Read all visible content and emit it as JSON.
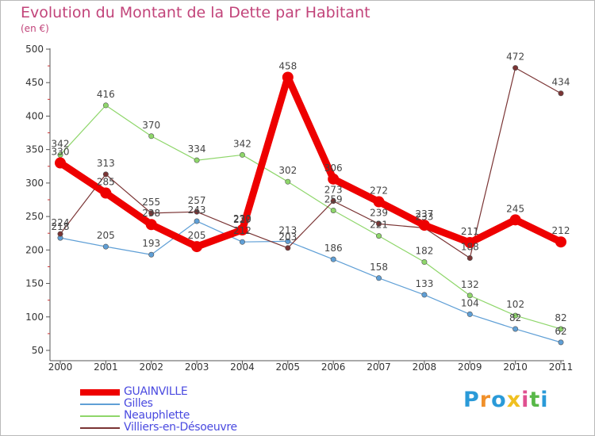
{
  "chart_data": {
    "type": "line",
    "title": "Evolution du Montant de la Dette par Habitant",
    "unit": "(en €)",
    "x": [
      "2000",
      "2001",
      "2002",
      "2003",
      "2004",
      "2005",
      "2006",
      "2007",
      "2008",
      "2009",
      "2010",
      "2011"
    ],
    "y_ticks": [
      50,
      100,
      150,
      200,
      250,
      300,
      350,
      400,
      450,
      500
    ],
    "ylim": [
      50,
      500
    ],
    "grid": false,
    "legend_position": "bottom-left",
    "series": [
      {
        "name": "GUAINVILLE",
        "color": "#ee0000",
        "values": [
          330,
          285,
          238,
          205,
          230,
          458,
          306,
          272,
          237,
          211,
          245,
          212
        ]
      },
      {
        "name": "Gilles",
        "color": "#5f9fd6",
        "values": [
          218,
          205,
          193,
          243,
          212,
          213,
          186,
          158,
          133,
          104,
          82,
          62
        ]
      },
      {
        "name": "Neauphlette",
        "color": "#8ed66a",
        "values": [
          342,
          416,
          370,
          334,
          342,
          302,
          259,
          221,
          182,
          132,
          102,
          82
        ]
      },
      {
        "name": "Villiers-en-Désoeuvre",
        "color": "#7a3434",
        "values": [
          224,
          313,
          255,
          257,
          229,
          203,
          273,
          239,
          233,
          188,
          472,
          434
        ]
      }
    ]
  },
  "logo": {
    "text": "Proxiti"
  }
}
